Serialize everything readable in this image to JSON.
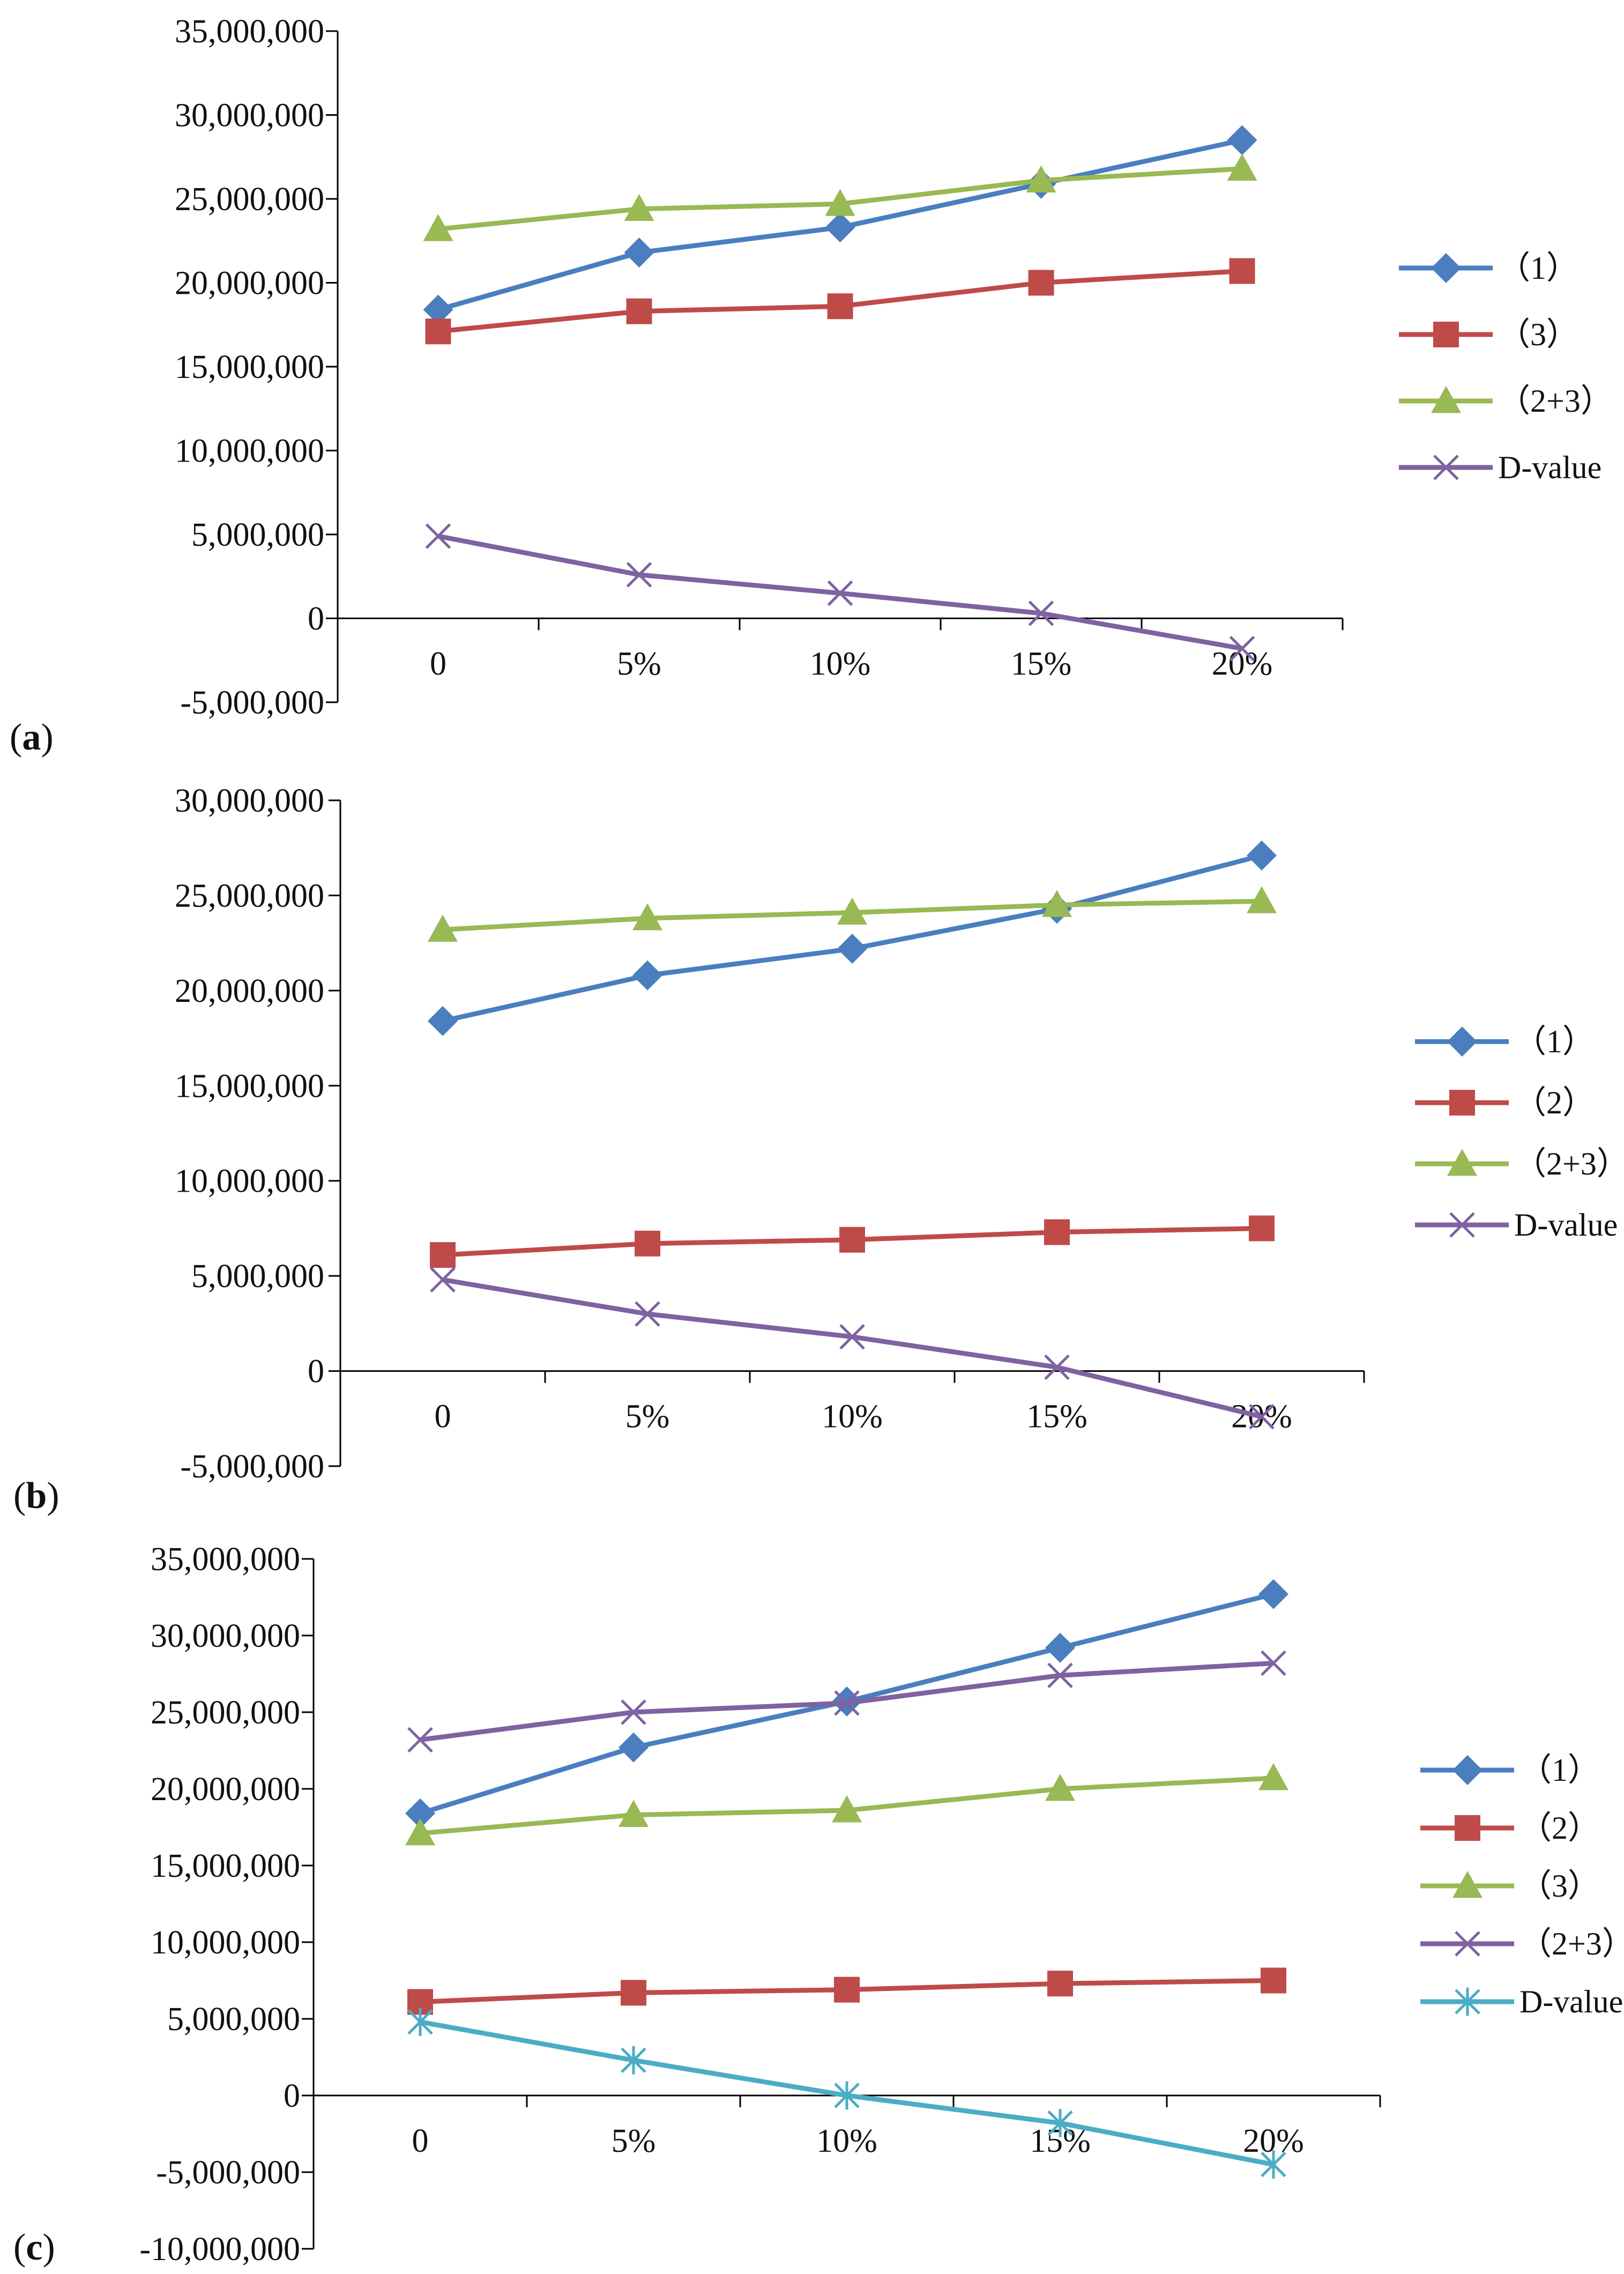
{
  "chart_data": [
    {
      "panel": "a",
      "type": "line",
      "categories": [
        "0",
        "5%",
        "10%",
        "15%",
        "20%"
      ],
      "y_ticks": [
        "-5,000,000",
        "0",
        "5,000,000",
        "10,000,000",
        "15,000,000",
        "20,000,000",
        "25,000,000",
        "30,000,000",
        "35,000,000"
      ],
      "ylim": [
        -5000000,
        35000000
      ],
      "series": [
        {
          "name": "（1）",
          "color": "#4a7ebf",
          "marker": "diamond",
          "values": [
            18400000,
            21800000,
            23300000,
            25900000,
            28500000
          ]
        },
        {
          "name": "（3）",
          "color": "#be4b48",
          "marker": "square",
          "values": [
            17100000,
            18300000,
            18600000,
            20000000,
            20700000
          ]
        },
        {
          "name": "（2+3）",
          "color": "#98b954",
          "marker": "triangle",
          "values": [
            23200000,
            24400000,
            24700000,
            26100000,
            26800000
          ]
        },
        {
          "name": "D-value",
          "color": "#7e62a1",
          "marker": "x",
          "values": [
            4900000,
            2600000,
            1500000,
            300000,
            -1800000
          ]
        }
      ]
    },
    {
      "panel": "b",
      "type": "line",
      "categories": [
        "0",
        "5%",
        "10%",
        "15%",
        "20%"
      ],
      "y_ticks": [
        "-5,000,000",
        "0",
        "5,000,000",
        "10,000,000",
        "15,000,000",
        "20,000,000",
        "25,000,000",
        "30,000,000"
      ],
      "ylim": [
        -5000000,
        30000000
      ],
      "series": [
        {
          "name": "（1）",
          "color": "#4a7ebf",
          "marker": "diamond",
          "values": [
            18400000,
            20800000,
            22200000,
            24300000,
            27100000
          ]
        },
        {
          "name": "（2）",
          "color": "#be4b48",
          "marker": "square",
          "values": [
            6100000,
            6700000,
            6900000,
            7300000,
            7500000
          ]
        },
        {
          "name": "（2+3）",
          "color": "#98b954",
          "marker": "triangle",
          "values": [
            23200000,
            23800000,
            24100000,
            24500000,
            24700000
          ]
        },
        {
          "name": "D-value",
          "color": "#7e62a1",
          "marker": "x",
          "values": [
            4800000,
            3000000,
            1800000,
            200000,
            -2400000
          ]
        }
      ]
    },
    {
      "panel": "c",
      "type": "line",
      "categories": [
        "0",
        "5%",
        "10%",
        "15%",
        "20%"
      ],
      "y_ticks": [
        "-10,000,000",
        "-5,000,000",
        "0",
        "5,000,000",
        "10,000,000",
        "15,000,000",
        "20,000,000",
        "25,000,000",
        "30,000,000",
        "35,000,000"
      ],
      "ylim": [
        -10000000,
        35000000
      ],
      "series": [
        {
          "name": "（1）",
          "color": "#4a7ebf",
          "marker": "diamond",
          "values": [
            18400000,
            22700000,
            25700000,
            29200000,
            32700000
          ]
        },
        {
          "name": "（2）",
          "color": "#be4b48",
          "marker": "square",
          "values": [
            6100000,
            6700000,
            6900000,
            7300000,
            7500000
          ]
        },
        {
          "name": "（3）",
          "color": "#98b954",
          "marker": "triangle",
          "values": [
            17100000,
            18300000,
            18600000,
            20000000,
            20700000
          ]
        },
        {
          "name": "（2+3）",
          "color": "#7e62a1",
          "marker": "x",
          "values": [
            23200000,
            25000000,
            25600000,
            27400000,
            28200000
          ]
        },
        {
          "name": "D-value",
          "color": "#4bacc6",
          "marker": "star",
          "values": [
            4800000,
            2300000,
            0,
            -1800000,
            -4500000
          ]
        }
      ]
    }
  ],
  "panel_labels": [
    {
      "open": "(",
      "letter": "a",
      "close": ")"
    },
    {
      "open": "(",
      "letter": "b",
      "close": ")"
    },
    {
      "open": "(",
      "letter": "c",
      "close": ")"
    }
  ]
}
